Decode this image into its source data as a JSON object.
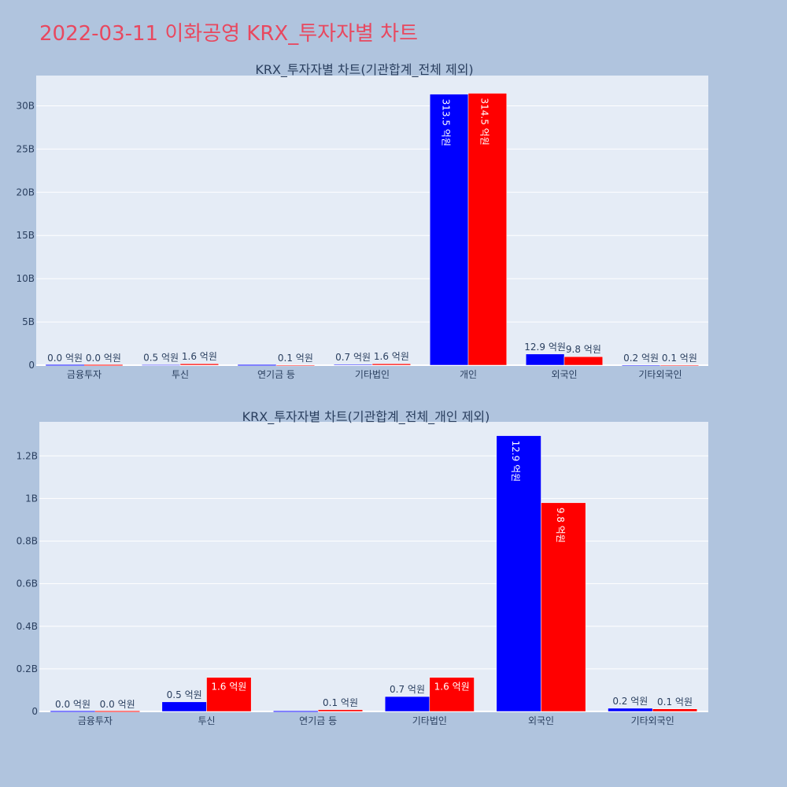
{
  "page_title": "2022-03-11 이화공영 KRX_투자자별 차트",
  "colors": {
    "background": "#b0c4de",
    "plot_bg": "#e5ecf6",
    "title": "#e8485f",
    "buy": "#0000ff",
    "sell": "#ff0000"
  },
  "chart_data": [
    {
      "type": "bar",
      "title": "KRX_투자자별 차트(기관합계_전체 제외)",
      "categories": [
        "금융투자",
        "투신",
        "연기금 등",
        "기타법인",
        "개인",
        "외국인",
        "기타외국인"
      ],
      "series": [
        {
          "color": "#0000ff",
          "values": [
            0.0,
            0.05,
            0.0,
            0.07,
            31.35,
            1.29,
            0.02
          ],
          "labels": [
            "0.0 억원",
            "0.5 억원",
            "",
            "0.7 억원",
            "313.5 억원",
            "12.9 억원",
            "0.2 억원"
          ]
        },
        {
          "color": "#ff0000",
          "values": [
            0.0,
            0.16,
            0.01,
            0.16,
            31.45,
            0.98,
            0.01
          ],
          "labels": [
            "0.0 억원",
            "1.6 억원",
            "0.1 억원",
            "1.6 억원",
            "314.5 억원",
            "9.8 억원",
            "0.1 억원"
          ]
        }
      ],
      "ylim": [
        0,
        33.5
      ],
      "yticks": [
        0,
        5,
        10,
        15,
        20,
        25,
        30
      ],
      "ytick_labels": [
        "0",
        "5B",
        "10B",
        "15B",
        "20B",
        "25B",
        "30B"
      ],
      "grid": true
    },
    {
      "type": "bar",
      "title": "KRX_투자자별 차트(기관합계_전체_개인 제외)",
      "categories": [
        "금융투자",
        "투신",
        "연기금 등",
        "기타법인",
        "외국인",
        "기타외국인"
      ],
      "series": [
        {
          "color": "#0000ff",
          "values": [
            0.0,
            0.045,
            0.0,
            0.07,
            1.295,
            0.015
          ],
          "labels": [
            "0.0 억원",
            "0.5 억원",
            "",
            "0.7 억원",
            "12.9 억원",
            "0.2 억원"
          ]
        },
        {
          "color": "#ff0000",
          "values": [
            0.0,
            0.16,
            0.008,
            0.16,
            0.98,
            0.012
          ],
          "labels": [
            "0.0 억원",
            "1.6 억원",
            "0.1 억원",
            "1.6 억원",
            "9.8 억원",
            "0.1 억원"
          ]
        }
      ],
      "ylim": [
        0,
        1.36
      ],
      "yticks": [
        0,
        0.2,
        0.4,
        0.6,
        0.8,
        1.0,
        1.2
      ],
      "ytick_labels": [
        "0",
        "0.2B",
        "0.4B",
        "0.6B",
        "0.8B",
        "1B",
        "1.2B"
      ],
      "grid": true
    }
  ]
}
